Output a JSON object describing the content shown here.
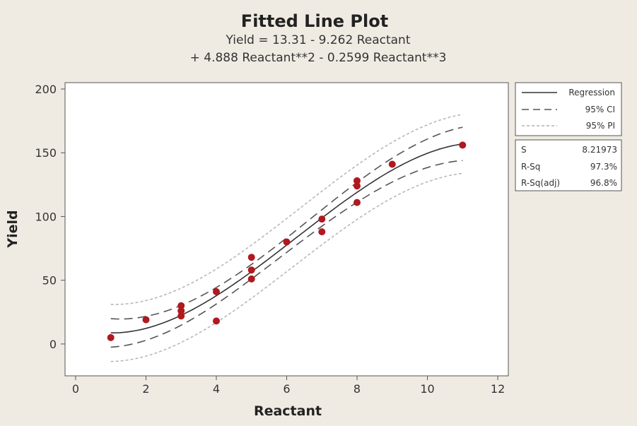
{
  "chart_data": {
    "type": "scatter",
    "title": "Fitted Line Plot",
    "subtitle_line1": "Yield = 13.31 - 9.262 Reactant",
    "subtitle_line2": "+ 4.888 Reactant**2 - 0.2599 Reactant**3",
    "xlabel": "Reactant",
    "ylabel": "Yield",
    "xlim": [
      -0.3,
      12.3
    ],
    "ylim": [
      -25,
      205
    ],
    "xticks": [
      0,
      2,
      4,
      6,
      8,
      10,
      12
    ],
    "yticks": [
      0,
      50,
      100,
      150,
      200
    ],
    "model": {
      "intercept": 13.31,
      "b1": -9.262,
      "b2": 4.888,
      "b3": -0.2599
    },
    "fit_range": [
      1,
      11
    ],
    "points": [
      {
        "x": 1,
        "y": 5
      },
      {
        "x": 2,
        "y": 19
      },
      {
        "x": 3,
        "y": 30
      },
      {
        "x": 3,
        "y": 26
      },
      {
        "x": 3,
        "y": 22
      },
      {
        "x": 4,
        "y": 41
      },
      {
        "x": 4,
        "y": 18
      },
      {
        "x": 5,
        "y": 68
      },
      {
        "x": 5,
        "y": 58
      },
      {
        "x": 5,
        "y": 51
      },
      {
        "x": 6,
        "y": 80
      },
      {
        "x": 7,
        "y": 98
      },
      {
        "x": 7,
        "y": 88
      },
      {
        "x": 8,
        "y": 128
      },
      {
        "x": 8,
        "y": 124
      },
      {
        "x": 8,
        "y": 111
      },
      {
        "x": 9,
        "y": 141
      },
      {
        "x": 11,
        "y": 156
      }
    ],
    "legend": [
      {
        "label": "Regression",
        "style": "solid"
      },
      {
        "label": "95% CI",
        "style": "dashed"
      },
      {
        "label": "95% PI",
        "style": "dotted"
      }
    ],
    "stats": [
      {
        "label": "S",
        "value": "8.21973"
      },
      {
        "label": "R-Sq",
        "value": "97.3%"
      },
      {
        "label": "R-Sq(adj)",
        "value": "96.8%"
      }
    ],
    "colors": {
      "points": "#b0191f",
      "regression": "#333333",
      "ci": "#555555",
      "pi": "#b8b8b8",
      "background": "#efebe3",
      "plot_area": "#ffffff"
    }
  }
}
